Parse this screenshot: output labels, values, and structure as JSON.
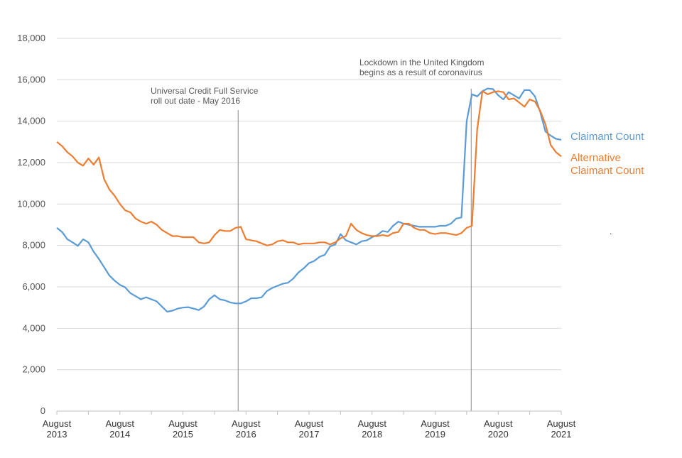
{
  "chart_data": {
    "type": "line",
    "title": "",
    "xlabel": "",
    "ylabel": "",
    "ylim": [
      0,
      18000
    ],
    "yticks": [
      0,
      2000,
      4000,
      6000,
      8000,
      10000,
      12000,
      14000,
      16000,
      18000
    ],
    "ytick_labels": [
      "0",
      "2,000",
      "4,000",
      "6,000",
      "8,000",
      "10,000",
      "12,000",
      "14,000",
      "16,000",
      "18,000"
    ],
    "grid": true,
    "x_start": "August 2013",
    "x_end": "August 2021",
    "n_points": 97,
    "x_ticks": [
      {
        "index": 0,
        "line1": "August",
        "line2": "2013"
      },
      {
        "index": 12,
        "line1": "August",
        "line2": "2014"
      },
      {
        "index": 24,
        "line1": "August",
        "line2": "2015"
      },
      {
        "index": 36,
        "line1": "August",
        "line2": "2016"
      },
      {
        "index": 48,
        "line1": "August",
        "line2": "2017"
      },
      {
        "index": 60,
        "line1": "August",
        "line2": "2018"
      },
      {
        "index": 72,
        "line1": "August",
        "line2": "2019"
      },
      {
        "index": 84,
        "line1": "August",
        "line2": "2020"
      },
      {
        "index": 96,
        "line1": "August",
        "line2": "2021"
      }
    ],
    "series": [
      {
        "name": "Claimant Count",
        "color": "#5B9BD5",
        "values": [
          8850,
          8650,
          8300,
          8150,
          7980,
          8300,
          8150,
          7700,
          7350,
          6950,
          6550,
          6300,
          6100,
          5980,
          5700,
          5550,
          5400,
          5500,
          5400,
          5300,
          5050,
          4800,
          4850,
          4950,
          5000,
          5020,
          4950,
          4880,
          5050,
          5400,
          5600,
          5400,
          5350,
          5250,
          5200,
          5200,
          5300,
          5450,
          5450,
          5500,
          5800,
          5950,
          6050,
          6150,
          6200,
          6400,
          6700,
          6900,
          7150,
          7250,
          7450,
          7550,
          7950,
          8050,
          8550,
          8250,
          8150,
          8050,
          8200,
          8250,
          8400,
          8500,
          8700,
          8650,
          8950,
          9150,
          9050,
          9000,
          8950,
          8900,
          8900,
          8900,
          8900,
          8950,
          8950,
          9050,
          9300,
          9350,
          14000,
          15300,
          15200,
          15450,
          15580,
          15550,
          15250,
          15050,
          15400,
          15250,
          15100,
          15500,
          15500,
          15200,
          14450,
          13500,
          13300,
          13150,
          13100
        ]
      },
      {
        "name": "Alternative Claimant Count",
        "color": "#ED7D31",
        "values": [
          13000,
          12800,
          12500,
          12300,
          12000,
          11850,
          12200,
          11900,
          12250,
          11200,
          10700,
          10400,
          10000,
          9700,
          9600,
          9300,
          9150,
          9050,
          9150,
          9000,
          8750,
          8600,
          8450,
          8450,
          8400,
          8400,
          8400,
          8150,
          8100,
          8150,
          8500,
          8750,
          8700,
          8700,
          8850,
          8900,
          8300,
          8250,
          8200,
          8100,
          8000,
          8050,
          8200,
          8250,
          8150,
          8150,
          8050,
          8100,
          8100,
          8100,
          8150,
          8150,
          8050,
          8150,
          8350,
          8450,
          9050,
          8750,
          8600,
          8500,
          8450,
          8450,
          8500,
          8450,
          8600,
          8650,
          9050,
          9050,
          8850,
          8750,
          8750,
          8600,
          8550,
          8600,
          8600,
          8550,
          8500,
          8600,
          8850,
          8950,
          13600,
          15450,
          15300,
          15400,
          15450,
          15400,
          15050,
          15100,
          14900,
          14700,
          15050,
          14950,
          14500,
          13850,
          12850,
          12500,
          12300
        ]
      }
    ],
    "legend": [
      {
        "lines": [
          "Claimant Count"
        ],
        "color": "#5B9BD5"
      },
      {
        "lines": [
          "Alternative",
          "Claimant Count"
        ],
        "color": "#ED7D31"
      }
    ],
    "annotations": [
      {
        "index": 36,
        "lines": [
          "Universal  Credit  Full Service",
          "roll out date - May 2016"
        ]
      },
      {
        "index": 79,
        "lines": [
          "Lockdown  in the United Kingdom",
          "begins as a result of coronavirus"
        ]
      }
    ],
    "stray_text": "."
  }
}
